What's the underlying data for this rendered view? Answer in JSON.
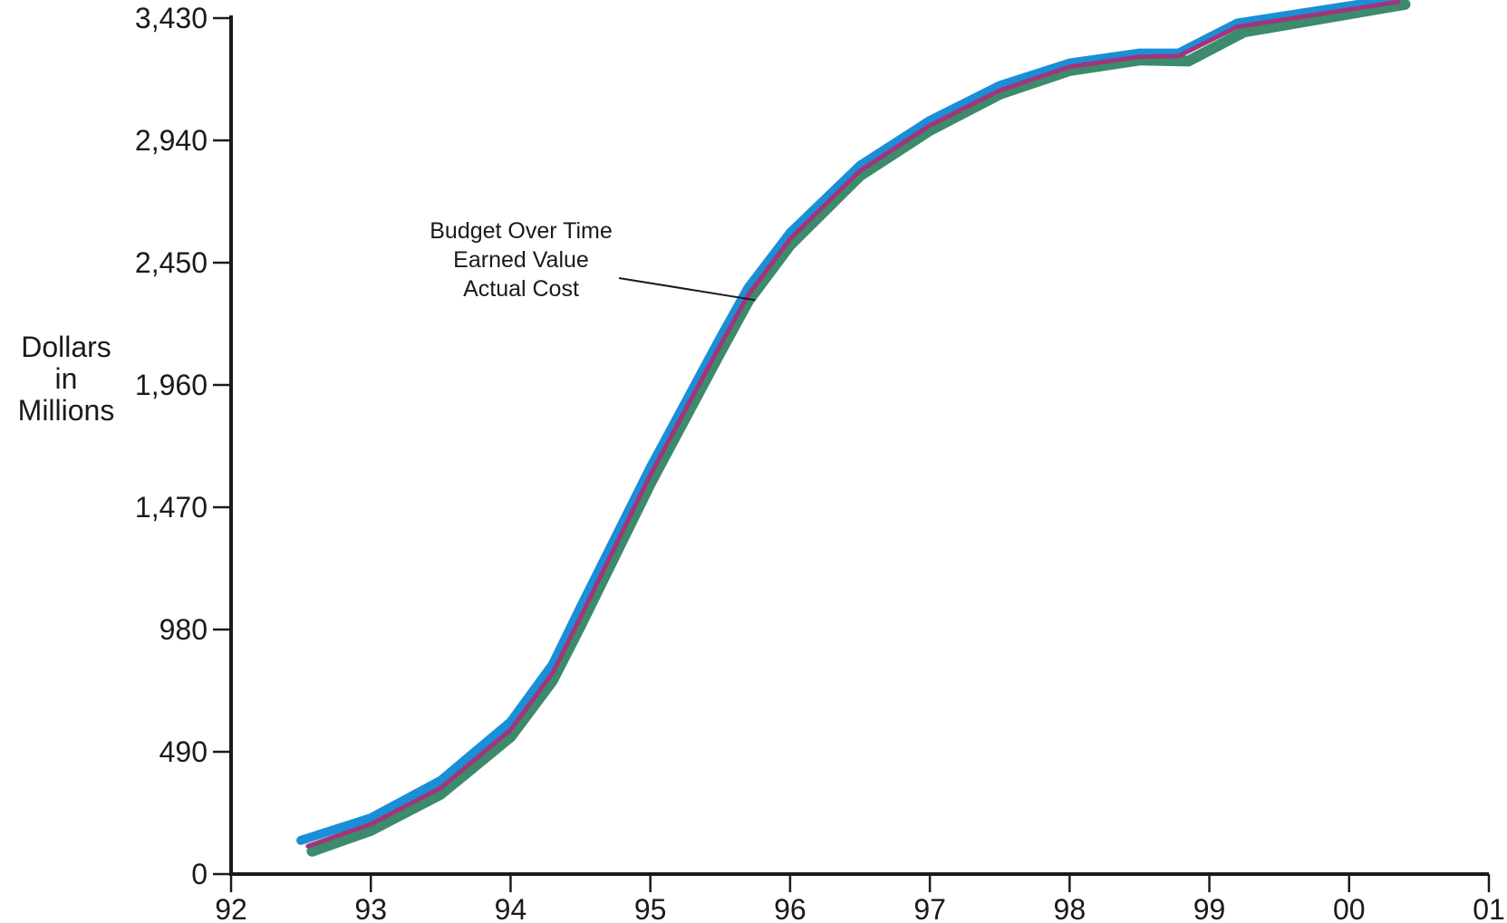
{
  "chart_data": {
    "type": "line",
    "title": "",
    "ylabel": [
      "Dollars",
      "in",
      "Millions"
    ],
    "xlabel": "",
    "x_axis": {
      "range": [
        1992,
        2001
      ],
      "ticks": [
        {
          "value": 1992,
          "label": "92"
        },
        {
          "value": 1993,
          "label": "93"
        },
        {
          "value": 1994,
          "label": "94"
        },
        {
          "value": 1995,
          "label": "95"
        },
        {
          "value": 1996,
          "label": "96"
        },
        {
          "value": 1997,
          "label": "97"
        },
        {
          "value": 1998,
          "label": "98"
        },
        {
          "value": 1999,
          "label": "99"
        },
        {
          "value": 2000,
          "label": "00"
        },
        {
          "value": 2001,
          "label": "01"
        }
      ]
    },
    "y_axis": {
      "range": [
        0,
        3430
      ],
      "ticks": [
        {
          "value": 0,
          "label": "0"
        },
        {
          "value": 490,
          "label": "490"
        },
        {
          "value": 980,
          "label": "980"
        },
        {
          "value": 1470,
          "label": "1,470"
        },
        {
          "value": 1960,
          "label": "1,960"
        },
        {
          "value": 2450,
          "label": "2,450"
        },
        {
          "value": 2940,
          "label": "2,940"
        },
        {
          "value": 3430,
          "label": "3,430"
        }
      ]
    },
    "grid": false,
    "annotation": {
      "lines": [
        "Budget Over Time",
        "Earned Value",
        "Actual Cost"
      ],
      "pointer_target": {
        "x": 1995.75,
        "y": 2300
      }
    },
    "series": [
      {
        "name": "Budget Over Time",
        "color": "#1a8fd8",
        "points": [
          [
            1992.5,
            135
          ],
          [
            1993.0,
            225
          ],
          [
            1993.5,
            375
          ],
          [
            1994.0,
            610
          ],
          [
            1994.3,
            840
          ],
          [
            1994.5,
            1070
          ],
          [
            1995.0,
            1630
          ],
          [
            1995.5,
            2150
          ],
          [
            1995.7,
            2350
          ],
          [
            1996.0,
            2570
          ],
          [
            1996.5,
            2840
          ],
          [
            1997.0,
            3020
          ],
          [
            1997.5,
            3160
          ],
          [
            1998.0,
            3250
          ],
          [
            1998.5,
            3290
          ],
          [
            1998.78,
            3290
          ],
          [
            1999.2,
            3410
          ],
          [
            2000.3,
            3505
          ]
        ]
      },
      {
        "name": "Earned Value",
        "color": "#a2357a",
        "points": [
          [
            1992.55,
            112
          ],
          [
            1993.0,
            200
          ],
          [
            1993.5,
            345
          ],
          [
            1994.0,
            578
          ],
          [
            1994.3,
            805
          ],
          [
            1994.5,
            1030
          ],
          [
            1995.0,
            1600
          ],
          [
            1995.5,
            2120
          ],
          [
            1995.7,
            2320
          ],
          [
            1996.0,
            2545
          ],
          [
            1996.5,
            2818
          ],
          [
            1997.0,
            3000
          ],
          [
            1997.5,
            3140
          ],
          [
            1998.0,
            3235
          ],
          [
            1998.5,
            3275
          ],
          [
            1998.78,
            3278
          ],
          [
            1999.2,
            3395
          ],
          [
            2000.35,
            3495
          ]
        ]
      },
      {
        "name": "Actual Cost",
        "color": "#3c8b6c",
        "points": [
          [
            1992.58,
            92
          ],
          [
            1993.0,
            175
          ],
          [
            1993.5,
            320
          ],
          [
            1994.0,
            550
          ],
          [
            1994.3,
            775
          ],
          [
            1994.5,
            995
          ],
          [
            1995.0,
            1565
          ],
          [
            1995.5,
            2090
          ],
          [
            1995.7,
            2295
          ],
          [
            1996.0,
            2520
          ],
          [
            1996.5,
            2798
          ],
          [
            1997.0,
            2980
          ],
          [
            1997.5,
            3125
          ],
          [
            1998.0,
            3220
          ],
          [
            1998.5,
            3262
          ],
          [
            1998.85,
            3258
          ],
          [
            1999.25,
            3375
          ],
          [
            2000.4,
            3485
          ]
        ]
      }
    ]
  }
}
